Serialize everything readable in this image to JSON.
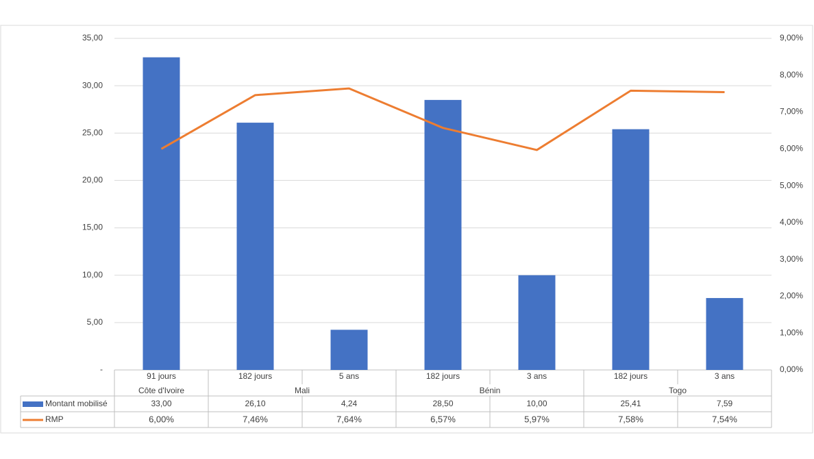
{
  "chart_data": {
    "type": "bar",
    "groups": [
      {
        "name": "Côte d'Ivoire",
        "categories": [
          "91 jours"
        ]
      },
      {
        "name": "Mali",
        "categories": [
          "182 jours",
          "5 ans"
        ]
      },
      {
        "name": "Bénin",
        "categories": [
          "182 jours",
          "3 ans"
        ]
      },
      {
        "name": "Togo",
        "categories": [
          "182 jours",
          "3 ans"
        ]
      }
    ],
    "series": [
      {
        "name": "Montant mobilisé",
        "type": "bar",
        "color": "#4472c4",
        "values": [
          33.0,
          26.1,
          4.24,
          28.5,
          10.0,
          25.41,
          7.59
        ],
        "value_labels": [
          "33,00",
          "26,10",
          "4,24",
          "28,50",
          "10,00",
          "25,41",
          "7,59"
        ]
      },
      {
        "name": "RMP",
        "type": "line",
        "axis": "y2",
        "color": "#ed7d31",
        "values": [
          6.0,
          7.46,
          7.64,
          6.57,
          5.97,
          7.58,
          7.54
        ],
        "value_labels": [
          "6,00%",
          "7,46%",
          "7,64%",
          "6,57%",
          "5,97%",
          "7,58%",
          "7,54%"
        ]
      }
    ],
    "ylim": [
      0,
      35
    ],
    "yticks": [
      {
        "value": 0,
        "label": "-"
      },
      {
        "value": 5,
        "label": "5,00"
      },
      {
        "value": 10,
        "label": "10,00"
      },
      {
        "value": 15,
        "label": "15,00"
      },
      {
        "value": 20,
        "label": "20,00"
      },
      {
        "value": 25,
        "label": "25,00"
      },
      {
        "value": 30,
        "label": "30,00"
      },
      {
        "value": 35,
        "label": "35,00"
      }
    ],
    "y2lim": [
      0,
      9
    ],
    "y2ticks": [
      {
        "value": 0,
        "label": "0,00%"
      },
      {
        "value": 1,
        "label": "1,00%"
      },
      {
        "value": 2,
        "label": "2,00%"
      },
      {
        "value": 3,
        "label": "3,00%"
      },
      {
        "value": 4,
        "label": "4,00%"
      },
      {
        "value": 5,
        "label": "5,00%"
      },
      {
        "value": 6,
        "label": "6,00%"
      },
      {
        "value": 7,
        "label": "7,00%"
      },
      {
        "value": 8,
        "label": "8,00%"
      },
      {
        "value": 9,
        "label": "9,00%"
      }
    ],
    "grid": true
  }
}
